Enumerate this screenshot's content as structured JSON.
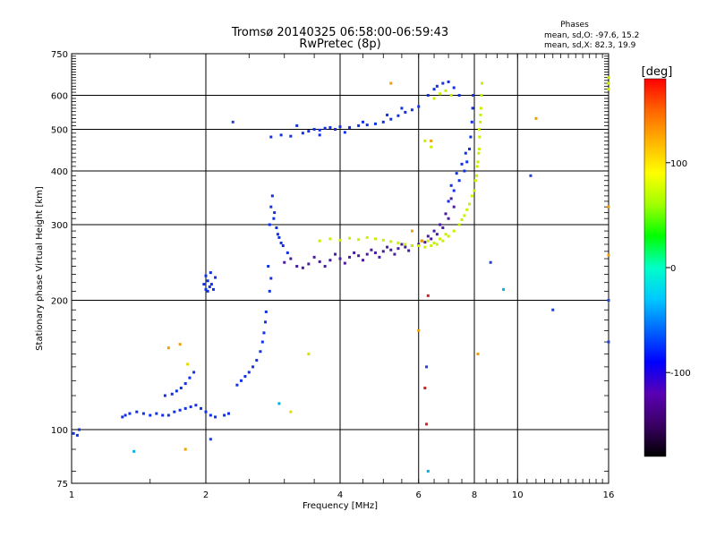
{
  "chart_data": {
    "type": "scatter",
    "title": "Tromsø 20140325 06:58:00-06:59:43",
    "subtitle": "RwPretec (8p)",
    "stats": {
      "heading": "Phases",
      "line_o": "mean, sd,O: -97.6, 15.2",
      "line_x": "mean, sd,X:  82.3, 19.9"
    },
    "xlabel": "Frequency [MHz]",
    "ylabel": "Stationary phase Virtual Height [km]",
    "x_scale": "log",
    "y_scale": "log",
    "xlim": [
      1,
      16
    ],
    "ylim": [
      75,
      750
    ],
    "x_ticks": [
      1,
      2,
      4,
      6,
      8,
      10,
      16
    ],
    "y_ticks": [
      75,
      100,
      200,
      300,
      400,
      500,
      600,
      750
    ],
    "grid": true,
    "colorbar": {
      "label": "[deg]",
      "range": [
        -180,
        180
      ],
      "ticks": [
        100,
        0,
        -100
      ],
      "colors": [
        "#000000",
        "#3a0064",
        "#5a00b4",
        "#0000ff",
        "#0064ff",
        "#00c8ff",
        "#00ffc8",
        "#00ff00",
        "#a0ff00",
        "#ffff00",
        "#ffb400",
        "#ff6400",
        "#ff0000"
      ]
    },
    "series": [
      {
        "color": "#1030e8",
        "points": [
          [
            1.01,
            98
          ],
          [
            1.04,
            100
          ],
          [
            1.03,
            97
          ],
          [
            1.3,
            107
          ],
          [
            1.32,
            108
          ],
          [
            1.35,
            109
          ],
          [
            1.4,
            110
          ],
          [
            1.45,
            109
          ],
          [
            1.5,
            108
          ],
          [
            1.55,
            109
          ],
          [
            1.6,
            108
          ],
          [
            1.65,
            108
          ],
          [
            1.7,
            110
          ],
          [
            1.75,
            111
          ],
          [
            1.8,
            112
          ],
          [
            1.85,
            113
          ],
          [
            1.9,
            114
          ],
          [
            1.95,
            112
          ],
          [
            2.0,
            110
          ],
          [
            2.05,
            108
          ],
          [
            2.1,
            107
          ],
          [
            2.2,
            108
          ],
          [
            2.25,
            109
          ],
          [
            1.62,
            120
          ],
          [
            1.68,
            121
          ],
          [
            1.72,
            123
          ],
          [
            1.76,
            125
          ],
          [
            1.8,
            128
          ],
          [
            1.84,
            132
          ],
          [
            1.88,
            136
          ],
          [
            2.35,
            127
          ],
          [
            2.4,
            130
          ],
          [
            2.45,
            133
          ],
          [
            2.5,
            136
          ],
          [
            2.55,
            140
          ],
          [
            2.6,
            145
          ],
          [
            2.65,
            152
          ],
          [
            2.68,
            160
          ],
          [
            2.7,
            168
          ],
          [
            2.72,
            178
          ],
          [
            2.73,
            188
          ],
          [
            2.0,
            212
          ],
          [
            2.02,
            210
          ],
          [
            2.04,
            215
          ],
          [
            2.06,
            218
          ],
          [
            2.08,
            212
          ],
          [
            1.98,
            218
          ],
          [
            2.0,
            228
          ],
          [
            2.05,
            232
          ],
          [
            2.1,
            226
          ],
          [
            2.02,
            222
          ],
          [
            2.78,
            300
          ],
          [
            2.8,
            330
          ],
          [
            2.82,
            350
          ],
          [
            2.85,
            320
          ],
          [
            2.88,
            295
          ],
          [
            2.92,
            280
          ],
          [
            2.98,
            268
          ],
          [
            3.05,
            258
          ],
          [
            2.76,
            240
          ],
          [
            2.8,
            225
          ],
          [
            2.78,
            210
          ],
          [
            2.9,
            285
          ],
          [
            2.84,
            310
          ],
          [
            2.95,
            272
          ],
          [
            2.8,
            480
          ],
          [
            2.95,
            485
          ],
          [
            3.1,
            482
          ],
          [
            3.3,
            490
          ],
          [
            3.4,
            495
          ],
          [
            3.5,
            500
          ],
          [
            3.6,
            498
          ],
          [
            3.7,
            503
          ],
          [
            3.8,
            505
          ],
          [
            3.9,
            500
          ],
          [
            4.0,
            507
          ],
          [
            4.2,
            505
          ],
          [
            4.4,
            510
          ],
          [
            4.6,
            512
          ],
          [
            4.8,
            515
          ],
          [
            5.0,
            520
          ],
          [
            5.2,
            528
          ],
          [
            5.4,
            538
          ],
          [
            5.6,
            548
          ],
          [
            5.8,
            555
          ],
          [
            6.0,
            565
          ],
          [
            3.2,
            510
          ],
          [
            3.6,
            485
          ],
          [
            4.1,
            492
          ],
          [
            4.5,
            520
          ],
          [
            5.1,
            540
          ],
          [
            5.5,
            560
          ],
          [
            6.3,
            600
          ],
          [
            6.5,
            620
          ],
          [
            6.6,
            630
          ],
          [
            6.8,
            640
          ],
          [
            7.0,
            645
          ],
          [
            7.2,
            625
          ],
          [
            7.4,
            600
          ],
          [
            7.0,
            340
          ],
          [
            7.2,
            360
          ],
          [
            7.4,
            380
          ],
          [
            7.6,
            400
          ],
          [
            7.7,
            420
          ],
          [
            7.8,
            450
          ],
          [
            7.85,
            480
          ],
          [
            7.9,
            520
          ],
          [
            7.93,
            560
          ],
          [
            7.95,
            600
          ],
          [
            7.1,
            370
          ],
          [
            7.3,
            395
          ],
          [
            7.5,
            415
          ],
          [
            7.65,
            440
          ]
        ]
      },
      {
        "color": "#4a1aa0",
        "points": [
          [
            3.0,
            245
          ],
          [
            3.2,
            240
          ],
          [
            3.4,
            243
          ],
          [
            3.6,
            246
          ],
          [
            3.8,
            248
          ],
          [
            4.0,
            250
          ],
          [
            4.2,
            252
          ],
          [
            4.4,
            254
          ],
          [
            4.6,
            256
          ],
          [
            4.8,
            258
          ],
          [
            5.0,
            260
          ],
          [
            5.2,
            262
          ],
          [
            5.4,
            264
          ],
          [
            5.6,
            266
          ],
          [
            5.8,
            268
          ],
          [
            6.0,
            270
          ],
          [
            6.2,
            273
          ],
          [
            6.4,
            278
          ],
          [
            6.6,
            285
          ],
          [
            6.8,
            295
          ],
          [
            7.0,
            310
          ],
          [
            7.2,
            330
          ],
          [
            3.1,
            250
          ],
          [
            3.3,
            238
          ],
          [
            3.5,
            252
          ],
          [
            3.7,
            240
          ],
          [
            3.9,
            256
          ],
          [
            4.1,
            244
          ],
          [
            4.3,
            258
          ],
          [
            4.5,
            248
          ],
          [
            4.7,
            262
          ],
          [
            4.9,
            252
          ],
          [
            5.1,
            266
          ],
          [
            5.3,
            256
          ],
          [
            5.5,
            270
          ],
          [
            5.7,
            261
          ],
          [
            6.1,
            275
          ],
          [
            6.3,
            282
          ],
          [
            6.5,
            290
          ],
          [
            6.7,
            300
          ],
          [
            6.9,
            318
          ],
          [
            7.1,
            345
          ]
        ]
      },
      {
        "color": "#c8f000",
        "points": [
          [
            3.6,
            275
          ],
          [
            3.8,
            278
          ],
          [
            4.0,
            276
          ],
          [
            4.2,
            279
          ],
          [
            4.4,
            277
          ],
          [
            4.6,
            280
          ],
          [
            4.8,
            278
          ],
          [
            5.0,
            276
          ],
          [
            5.2,
            274
          ],
          [
            5.4,
            272
          ],
          [
            5.6,
            270
          ],
          [
            5.8,
            268
          ],
          [
            6.0,
            268
          ],
          [
            6.2,
            266
          ],
          [
            6.4,
            268
          ],
          [
            6.6,
            270
          ],
          [
            6.8,
            275
          ],
          [
            7.0,
            282
          ],
          [
            7.2,
            290
          ],
          [
            7.4,
            300
          ],
          [
            7.6,
            315
          ],
          [
            7.8,
            335
          ],
          [
            8.0,
            360
          ],
          [
            8.1,
            390
          ],
          [
            8.15,
            420
          ],
          [
            8.2,
            450
          ],
          [
            8.22,
            480
          ],
          [
            8.25,
            520
          ],
          [
            8.28,
            560
          ],
          [
            8.3,
            600
          ],
          [
            8.32,
            640
          ],
          [
            7.9,
            350
          ],
          [
            8.05,
            380
          ],
          [
            8.12,
            410
          ],
          [
            8.18,
            440
          ],
          [
            8.2,
            500
          ],
          [
            8.26,
            540
          ],
          [
            7.5,
            308
          ],
          [
            7.7,
            325
          ],
          [
            6.9,
            285
          ],
          [
            6.7,
            278
          ],
          [
            6.3,
            275
          ],
          [
            6.5,
            272
          ],
          [
            6.5,
            590
          ],
          [
            6.7,
            605
          ],
          [
            6.9,
            615
          ],
          [
            7.1,
            600
          ],
          [
            6.2,
            470
          ],
          [
            6.4,
            455
          ],
          [
            16.0,
            660
          ],
          [
            16.0,
            640
          ],
          [
            16.0,
            620
          ]
        ]
      },
      {
        "color": "#f0a000",
        "points": [
          [
            5.2,
            640
          ],
          [
            5.8,
            290
          ],
          [
            6.1,
            275
          ],
          [
            6.4,
            470
          ],
          [
            11.0,
            530
          ],
          [
            1.65,
            155
          ],
          [
            1.75,
            158
          ],
          [
            1.8,
            90
          ],
          [
            16.0,
            330
          ],
          [
            16.0,
            255
          ],
          [
            8.15,
            150
          ],
          [
            6.0,
            170
          ]
        ]
      },
      {
        "color": "#00b0e0",
        "points": [
          [
            1.38,
            89
          ],
          [
            6.3,
            80
          ],
          [
            2.92,
            115
          ],
          [
            9.3,
            212
          ]
        ]
      },
      {
        "color": "#2040d0",
        "points": [
          [
            2.3,
            520
          ],
          [
            8.7,
            245
          ],
          [
            12.0,
            190
          ],
          [
            16.0,
            200
          ],
          [
            16.0,
            160
          ],
          [
            6.25,
            140
          ],
          [
            2.05,
            95
          ],
          [
            10.7,
            390
          ]
        ]
      },
      {
        "color": "#d02020",
        "points": [
          [
            6.2,
            125
          ],
          [
            6.25,
            103
          ],
          [
            6.3,
            205
          ]
        ]
      },
      {
        "color": "#e0e000",
        "points": [
          [
            3.4,
            150
          ],
          [
            3.1,
            110
          ],
          [
            1.82,
            142
          ]
        ]
      }
    ]
  }
}
